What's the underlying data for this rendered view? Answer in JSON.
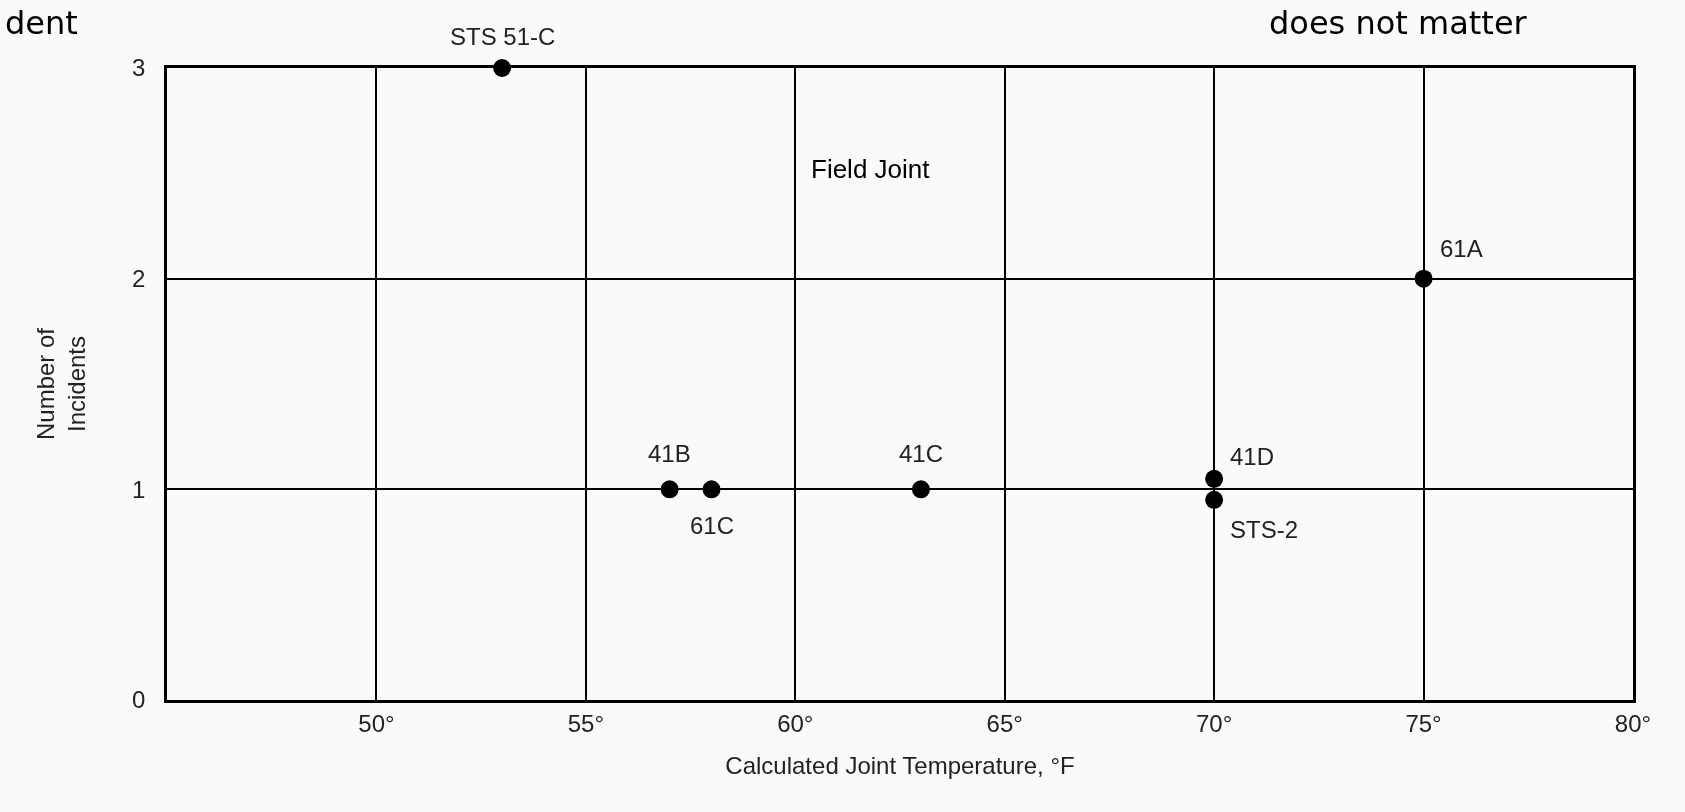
{
  "chart_data": {
    "type": "scatter",
    "xlabel": "Calculated Joint Temperature, °F",
    "ylabel": "Number of\nIncidents",
    "x": [
      53,
      57,
      58,
      63,
      70,
      70,
      75
    ],
    "values": [
      3,
      1,
      1,
      1,
      1.05,
      0.95,
      2
    ],
    "color": "#000000",
    "marker": "circle",
    "xlim": [
      45,
      80
    ],
    "xticks": [
      {
        "value": 50,
        "label": "50°"
      },
      {
        "value": 55,
        "label": "55°"
      },
      {
        "value": 60,
        "label": "60°"
      },
      {
        "value": 65,
        "label": "65°"
      },
      {
        "value": 70,
        "label": "70°"
      },
      {
        "value": 75,
        "label": "75°"
      },
      {
        "value": 80,
        "label": "80°"
      }
    ],
    "ylim": [
      0,
      3
    ],
    "yticks": [
      0,
      1,
      2,
      3
    ],
    "grid": true,
    "annotations": [
      {
        "text": "STS 51-C",
        "x": 53,
        "y": 3
      },
      {
        "text": "41B",
        "x": 57,
        "y": 1
      },
      {
        "text": "61C",
        "x": 58,
        "y": 1
      },
      {
        "text": "41C",
        "x": 63,
        "y": 1
      },
      {
        "text": "41D",
        "x": 70,
        "y": 1.05
      },
      {
        "text": "STS-2",
        "x": 70,
        "y": 0.95
      },
      {
        "text": "61A",
        "x": 75,
        "y": 2
      },
      "Field Joint",
      "dent",
      "does not matter"
    ]
  }
}
